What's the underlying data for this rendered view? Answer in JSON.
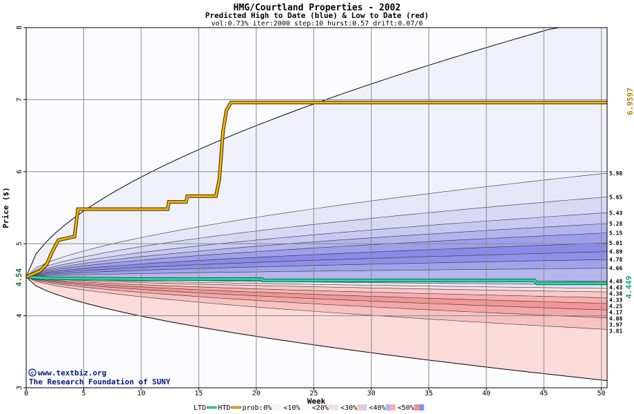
{
  "chart_data": {
    "type": "area",
    "title": "HMG/Courtland Properties - 2002",
    "subtitle": "Predicted High to Date (blue) &  Low to Date (red)",
    "params": "vol:0.73% iter:2000 step:10 hurst:0.57 drift:0.07/0",
    "xlabel": "Week",
    "ylabel": "Price ($)",
    "xlim": [
      0,
      50.5
    ],
    "ylim": [
      3,
      8
    ],
    "x_ticks": [
      0,
      5,
      10,
      15,
      20,
      25,
      30,
      35,
      40,
      45,
      50
    ],
    "y_ticks": [
      3,
      4,
      5,
      6,
      7,
      8
    ],
    "grid": true,
    "start_price": 4.54,
    "start_label": "4.54",
    "htd_value": 6.9597,
    "htd_label": "6.9597",
    "ltd_value": 4.449,
    "ltd_label": "4.449",
    "band_end_values": [
      5.98,
      5.65,
      5.43,
      5.28,
      5.15,
      5.01,
      4.89,
      4.78,
      4.66,
      4.48,
      4.43,
      4.38,
      4.33,
      4.25,
      4.17,
      4.08,
      3.97,
      3.81
    ],
    "band_end_labels": [
      "5.98",
      "5.65",
      "5.43",
      "5.28",
      "5.15",
      "5.01",
      "4.89",
      "4.78",
      "4.66",
      "4.48",
      "4.43",
      "4.38",
      "4.33",
      "4.25",
      "4.17",
      "4.08",
      "3.97",
      "3.81"
    ],
    "high_outer_end": 8.2,
    "low_outer_end": 3.1,
    "high_to_date_path": [
      [
        0,
        4.54
      ],
      [
        1.2,
        4.62
      ],
      [
        1.8,
        4.72
      ],
      [
        2.3,
        4.9
      ],
      [
        2.8,
        5.05
      ],
      [
        4.2,
        5.1
      ],
      [
        4.5,
        5.48
      ],
      [
        12.3,
        5.48
      ],
      [
        12.4,
        5.58
      ],
      [
        13.9,
        5.58
      ],
      [
        14.0,
        5.66
      ],
      [
        16.5,
        5.66
      ],
      [
        16.8,
        5.9
      ],
      [
        17.1,
        6.55
      ],
      [
        17.4,
        6.85
      ],
      [
        17.8,
        6.96
      ],
      [
        50.5,
        6.96
      ]
    ],
    "low_to_date_path": [
      [
        0,
        4.54
      ],
      [
        2,
        4.52
      ],
      [
        10,
        4.51
      ],
      [
        20.5,
        4.51
      ],
      [
        20.6,
        4.49
      ],
      [
        44.2,
        4.49
      ],
      [
        44.4,
        4.449
      ],
      [
        50.5,
        4.449
      ]
    ],
    "series": [
      {
        "name": "LTD",
        "color": "#2ad6a0"
      },
      {
        "name": "HTD",
        "color": "#f0b400"
      }
    ],
    "legend": {
      "ltd": "LTD",
      "htd": "HTD",
      "prob_label": "prob:",
      "prob_entries": [
        "0%",
        "<10%",
        "<20%",
        "<30%",
        "<40%",
        "<50%"
      ]
    },
    "watermark_line1": "www.textbiz.org",
    "watermark_line2": "The Research Foundation of SUNY"
  }
}
